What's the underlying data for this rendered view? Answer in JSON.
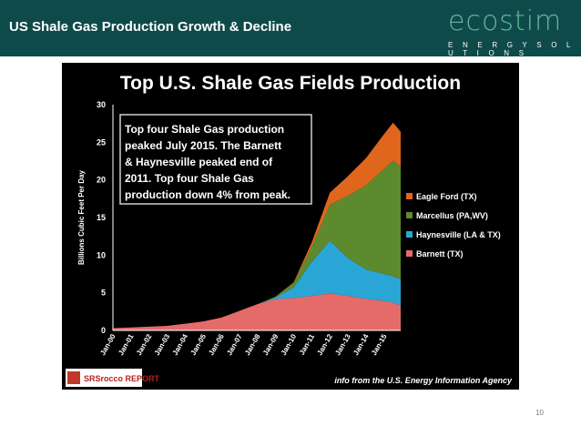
{
  "slide": {
    "title": "US Shale Gas Production Growth & Decline",
    "page_number": "10"
  },
  "logo": {
    "wordmark": "ecostim",
    "subtitle": "E N E R G Y   S O L U T I O N S"
  },
  "colors": {
    "header_bg": "#0f4a4a",
    "eagle_ford": "#e0661e",
    "marcellus": "#5e8a2e",
    "haynesville": "#2aa6d6",
    "barnett": "#e56b6b"
  },
  "chart_data": {
    "type": "area",
    "stacked": true,
    "title": "Top U.S. Shale Gas Fields Production",
    "ylabel": "Billions Cubic Feet Per Day",
    "xlabel": "",
    "ylim": [
      0,
      30
    ],
    "yticks": [
      "0",
      "5",
      "10",
      "15",
      "20",
      "25",
      "30"
    ],
    "x": [
      "Jan-00",
      "Jan-01",
      "Jan-02",
      "Jan-03",
      "Jan-04",
      "Jan-05",
      "Jan-06",
      "Jan-07",
      "Jan-08",
      "Jan-09",
      "Jan-10",
      "Jan-11",
      "Jan-12",
      "Jan-13",
      "Jan-14",
      "Jan-15",
      "Jul-15",
      "Dec-15"
    ],
    "xticks": [
      "Jan-00",
      "Jan-01",
      "Jan-02",
      "Jan-03",
      "Jan-04",
      "Jan-05",
      "Jan-06",
      "Jan-07",
      "Jan-08",
      "Jan-09",
      "Jan-10",
      "Jan-11",
      "Jan-12",
      "Jan-13",
      "Jan-14",
      "Jan-15"
    ],
    "series": [
      {
        "name": "Barnett (TX)",
        "color": "#e56b6b",
        "values": [
          0.3,
          0.4,
          0.5,
          0.6,
          0.9,
          1.2,
          1.7,
          2.6,
          3.5,
          4.2,
          4.3,
          4.6,
          4.9,
          4.6,
          4.2,
          3.9,
          3.7,
          3.3
        ]
      },
      {
        "name": "Haynesville (LA & TX)",
        "color": "#2aa6d6",
        "values": [
          0,
          0,
          0,
          0,
          0,
          0,
          0,
          0,
          0,
          0.2,
          1.4,
          4.5,
          7.0,
          5.0,
          3.9,
          3.6,
          3.5,
          3.5
        ]
      },
      {
        "name": "Marcellus (PA,WV)",
        "color": "#5e8a2e",
        "values": [
          0,
          0,
          0,
          0,
          0,
          0,
          0,
          0,
          0,
          0.1,
          0.6,
          2.0,
          4.8,
          8.3,
          11.2,
          14.0,
          15.4,
          15.0
        ]
      },
      {
        "name": "Eagle Ford (TX)",
        "color": "#e0661e",
        "values": [
          0,
          0,
          0,
          0,
          0,
          0,
          0,
          0,
          0,
          0,
          0.1,
          0.6,
          1.6,
          2.6,
          3.6,
          4.6,
          5.0,
          4.6
        ]
      }
    ],
    "annotation": {
      "lines": [
        "Top four Shale Gas production",
        "peaked July 2015.  The Barnett",
        "& Haynesville peaked end of",
        "2011.  Top four Shale Gas",
        "production down 4% from peak."
      ]
    },
    "legend_placement": "right",
    "grid": false,
    "source_note": "info from the U.S. Energy Information Agency",
    "publisher_logo": "SRSrocco REPORT"
  }
}
